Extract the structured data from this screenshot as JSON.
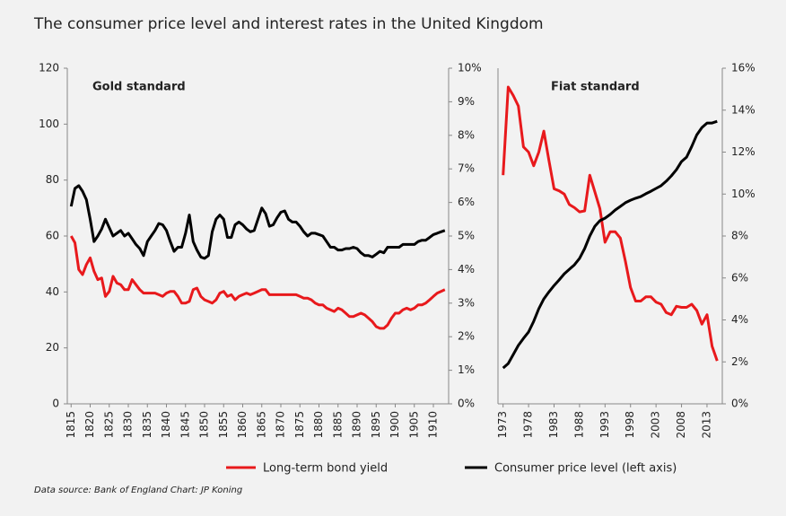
{
  "title": "The consumer price level and interest rates in the United Kingdom",
  "source": "Data source: Bank of England  Chart: JP Koning",
  "chart_data": [
    {
      "type": "line",
      "title": "Gold standard",
      "x": [
        1815,
        1816,
        1817,
        1818,
        1819,
        1820,
        1821,
        1822,
        1823,
        1824,
        1825,
        1826,
        1827,
        1828,
        1829,
        1830,
        1831,
        1832,
        1833,
        1834,
        1835,
        1836,
        1837,
        1838,
        1839,
        1840,
        1841,
        1842,
        1843,
        1844,
        1845,
        1846,
        1847,
        1848,
        1849,
        1850,
        1851,
        1852,
        1853,
        1854,
        1855,
        1856,
        1857,
        1858,
        1859,
        1860,
        1861,
        1862,
        1863,
        1864,
        1865,
        1866,
        1867,
        1868,
        1869,
        1870,
        1871,
        1872,
        1873,
        1874,
        1875,
        1876,
        1877,
        1878,
        1879,
        1880,
        1881,
        1882,
        1883,
        1884,
        1885,
        1886,
        1887,
        1888,
        1889,
        1890,
        1891,
        1892,
        1893,
        1894,
        1895,
        1896,
        1897,
        1898,
        1899,
        1900,
        1901,
        1902,
        1903,
        1904,
        1905,
        1906,
        1907,
        1908,
        1909,
        1910,
        1911,
        1912,
        1913
      ],
      "series": [
        {
          "name": "Long-term bond yield",
          "color": "#e8191c",
          "axis": "y2",
          "values": [
            5.0,
            4.8,
            4.0,
            3.85,
            4.15,
            4.35,
            3.95,
            3.7,
            3.75,
            3.2,
            3.35,
            3.8,
            3.6,
            3.55,
            3.4,
            3.4,
            3.7,
            3.55,
            3.4,
            3.3,
            3.3,
            3.3,
            3.3,
            3.25,
            3.2,
            3.3,
            3.35,
            3.35,
            3.2,
            3.0,
            3.0,
            3.05,
            3.4,
            3.45,
            3.2,
            3.1,
            3.05,
            3.0,
            3.1,
            3.3,
            3.35,
            3.2,
            3.25,
            3.1,
            3.2,
            3.25,
            3.3,
            3.25,
            3.3,
            3.35,
            3.4,
            3.4,
            3.25,
            3.25,
            3.25,
            3.25,
            3.25,
            3.25,
            3.25,
            3.25,
            3.2,
            3.15,
            3.15,
            3.1,
            3.0,
            2.95,
            2.95,
            2.85,
            2.8,
            2.75,
            2.85,
            2.8,
            2.7,
            2.6,
            2.6,
            2.65,
            2.7,
            2.65,
            2.55,
            2.45,
            2.3,
            2.25,
            2.25,
            2.35,
            2.55,
            2.7,
            2.7,
            2.8,
            2.85,
            2.8,
            2.85,
            2.95,
            2.95,
            3.0,
            3.1,
            3.2,
            3.3,
            3.35,
            3.4
          ]
        },
        {
          "name": "Consumer price level (left axis)",
          "color": "#000000",
          "axis": "y",
          "values": [
            70.6,
            77,
            78,
            76,
            73,
            66,
            58,
            60,
            62.5,
            66,
            63,
            60,
            61,
            62,
            60,
            61,
            59,
            57,
            55.5,
            53,
            58,
            60,
            62,
            64.5,
            64,
            62,
            58,
            54.5,
            56,
            56,
            61,
            67.5,
            58,
            55,
            52.5,
            52,
            53,
            61.5,
            66,
            67.5,
            66,
            59.5,
            59.5,
            64,
            65,
            64,
            62.5,
            61.5,
            62,
            66,
            70,
            68,
            63.5,
            64,
            66.5,
            68.5,
            69,
            66,
            65,
            65,
            63.5,
            61.5,
            60,
            61,
            61,
            60.5,
            60,
            58,
            56,
            56,
            55,
            55,
            55.5,
            55.5,
            56,
            55.5,
            54,
            53,
            53,
            52.5,
            53.5,
            54.5,
            54,
            56,
            56,
            56,
            56,
            57,
            57,
            57,
            57,
            58,
            58.5,
            58.5,
            59.5,
            60.5,
            61,
            61.5,
            62
          ]
        }
      ],
      "xlim": [
        1814,
        1914
      ],
      "xticks": [
        1815,
        1820,
        1825,
        1830,
        1835,
        1840,
        1845,
        1850,
        1855,
        1860,
        1865,
        1870,
        1875,
        1880,
        1885,
        1890,
        1895,
        1900,
        1905,
        1910
      ],
      "ylim": [
        0,
        120
      ],
      "yticks": [
        0,
        20,
        40,
        60,
        80,
        100,
        120
      ],
      "y2lim": [
        0,
        10
      ],
      "y2ticks": [
        {
          "value": 0,
          "label": "0%"
        },
        {
          "value": 1,
          "label": "1%"
        },
        {
          "value": 2,
          "label": "2%"
        },
        {
          "value": 3,
          "label": "3%"
        },
        {
          "value": 4,
          "label": "4%"
        },
        {
          "value": 5,
          "label": "5%"
        },
        {
          "value": 6,
          "label": "6%"
        },
        {
          "value": 7,
          "label": "7%"
        },
        {
          "value": 8,
          "label": "8%"
        },
        {
          "value": 9,
          "label": "9%"
        },
        {
          "value": 10,
          "label": "10%"
        }
      ]
    },
    {
      "type": "line",
      "title": "Fiat standard",
      "x": [
        1973,
        1974,
        1975,
        1976,
        1977,
        1978,
        1979,
        1980,
        1981,
        1982,
        1983,
        1984,
        1985,
        1986,
        1987,
        1988,
        1989,
        1990,
        1991,
        1992,
        1993,
        1994,
        1995,
        1996,
        1997,
        1998,
        1999,
        2000,
        2001,
        2002,
        2003,
        2004,
        2005,
        2006,
        2007,
        2008,
        2009,
        2010,
        2011,
        2012,
        2013,
        2014,
        2015
      ],
      "series": [
        {
          "name": "Long-term bond yield",
          "color": "#e8191c",
          "axis": "y2",
          "values": [
            10.9,
            15.1,
            14.7,
            14.2,
            12.25,
            12.0,
            11.35,
            12.0,
            13.0,
            11.6,
            10.25,
            10.15,
            10.0,
            9.5,
            9.35,
            9.15,
            9.2,
            10.9,
            10.1,
            9.3,
            7.7,
            8.2,
            8.2,
            7.9,
            6.8,
            5.55,
            4.9,
            4.9,
            5.1,
            5.1,
            4.85,
            4.75,
            4.35,
            4.25,
            4.65,
            4.6,
            4.6,
            4.75,
            4.45,
            3.8,
            4.25,
            2.75,
            2.05
          ]
        },
        {
          "name": "Consumer price level (left axis)",
          "color": "#000000",
          "axis": "y",
          "values": [
            12.8,
            14.4,
            17.6,
            20.9,
            23.4,
            25.7,
            29.5,
            34,
            37.5,
            40,
            42.3,
            44.3,
            46.5,
            48.1,
            49.7,
            52,
            55.5,
            60,
            63.5,
            65.5,
            66.4,
            67.7,
            69.3,
            70.6,
            71.9,
            72.8,
            73.5,
            74.1,
            75.1,
            76,
            77,
            78,
            79.6,
            81.5,
            83.7,
            86.6,
            88.2,
            92,
            96.2,
            98.8,
            100.4,
            100.4,
            101
          ]
        }
      ],
      "xlim": [
        1972,
        2016
      ],
      "xticks": [
        1973,
        1978,
        1983,
        1988,
        1993,
        1998,
        2003,
        2008,
        2013
      ],
      "ylim": [
        0,
        120
      ],
      "y2lim": [
        0,
        16
      ],
      "y2ticks": [
        {
          "value": 0,
          "label": "0%"
        },
        {
          "value": 2,
          "label": "2%"
        },
        {
          "value": 4,
          "label": "4%"
        },
        {
          "value": 6,
          "label": "6%"
        },
        {
          "value": 8,
          "label": "8%"
        },
        {
          "value": 10,
          "label": "10%"
        },
        {
          "value": 12,
          "label": "12%"
        },
        {
          "value": 14,
          "label": "14%"
        },
        {
          "value": 16,
          "label": "16%"
        }
      ]
    }
  ]
}
